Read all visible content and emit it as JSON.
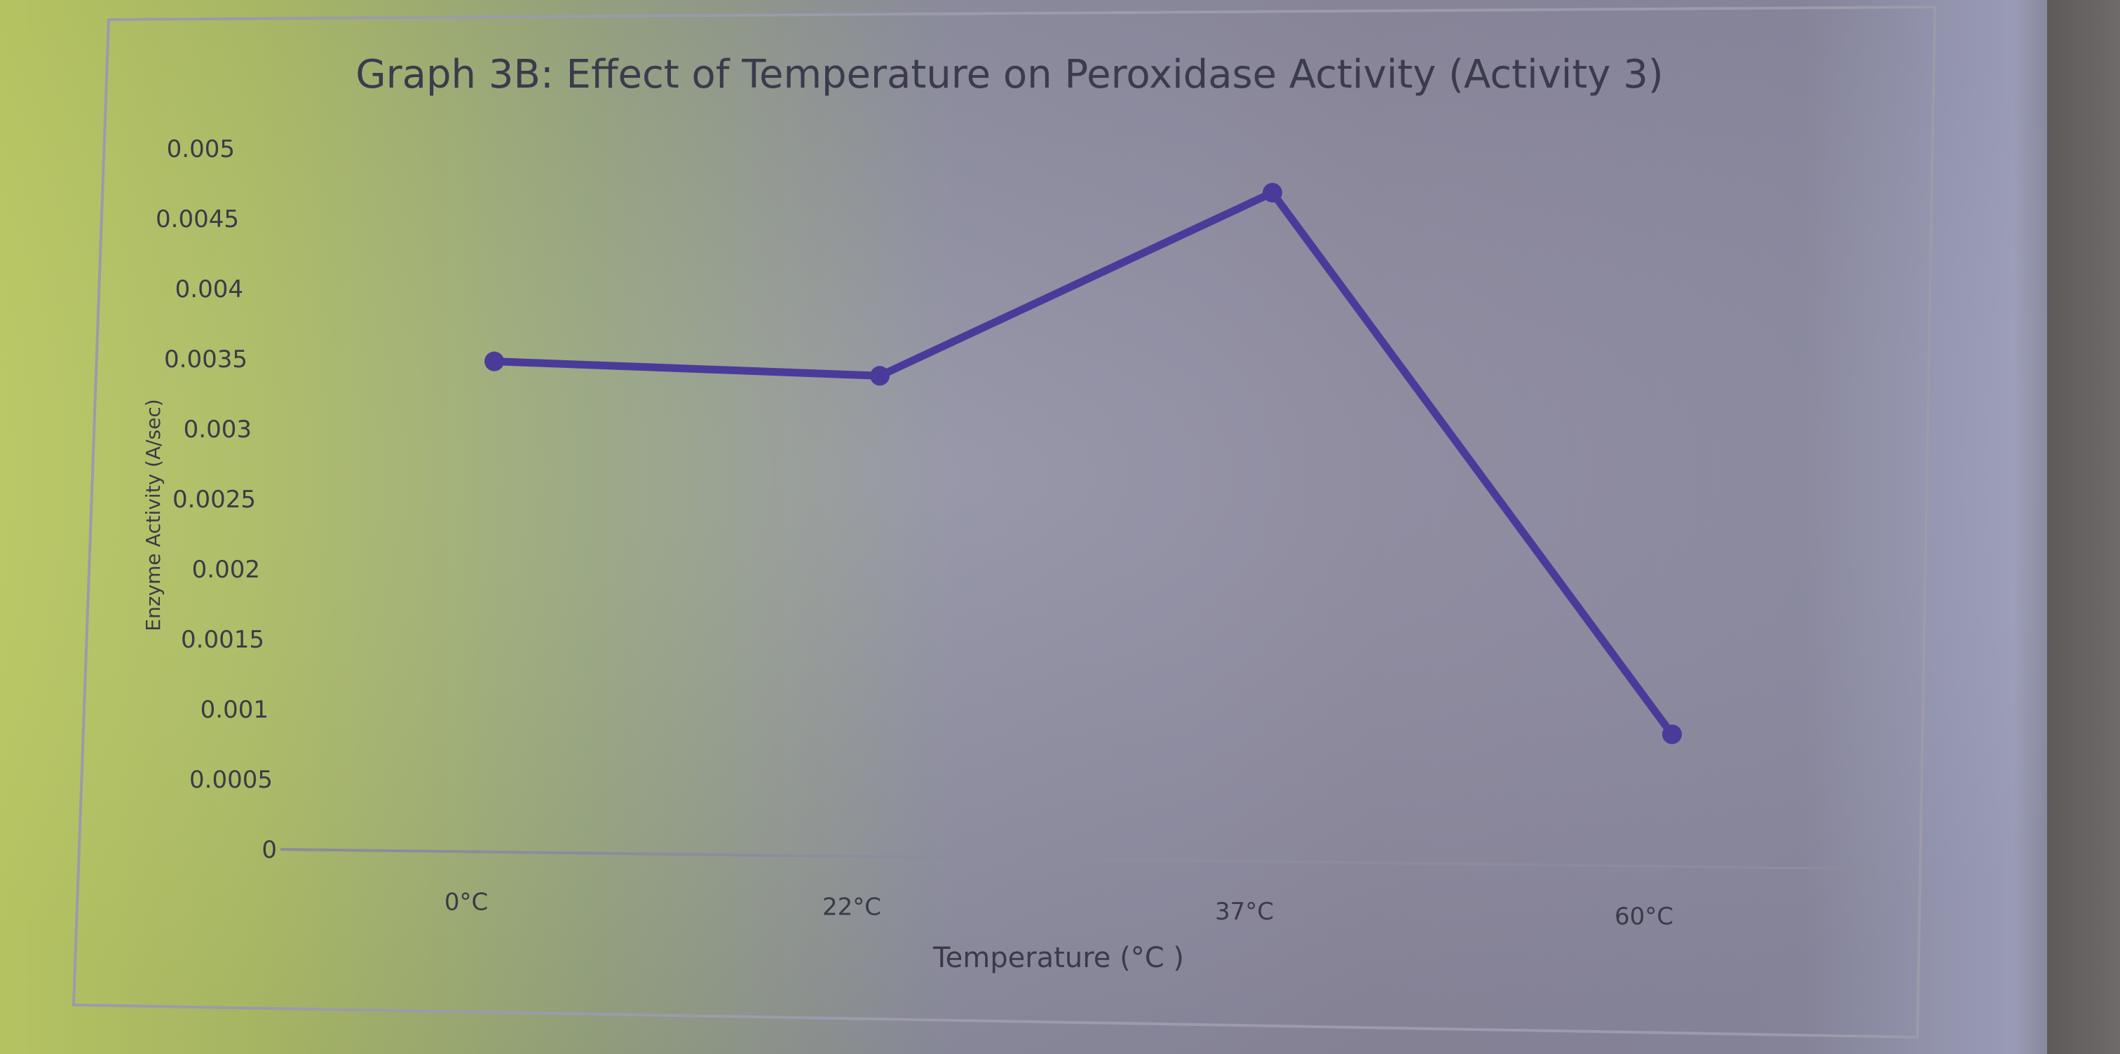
{
  "chart_data": {
    "type": "line",
    "title": "Graph 3B: Effect of Temperature on Peroxidase Activity (Activity 3)",
    "xlabel": "Temperature (°C )",
    "ylabel": "Enzyme Activity (A/sec)",
    "categories": [
      "0°C",
      "22°C",
      "37°C",
      "60°C"
    ],
    "series": [
      {
        "name": "Enzyme Activity",
        "values": [
          0.0035,
          0.00343,
          0.00477,
          0.00094
        ]
      }
    ],
    "ylim": [
      0,
      0.005
    ],
    "yticks": [
      "0",
      "0.0005",
      "0.001",
      "0.0015",
      "0.002",
      "0.0025",
      "0.003",
      "0.0035",
      "0.004",
      "0.0045",
      "0.005"
    ],
    "grid": false,
    "legend": "none",
    "colors": {
      "line": "#4a3b9a",
      "axis": "#8c8c9c",
      "frame": "#9b9bab"
    }
  }
}
